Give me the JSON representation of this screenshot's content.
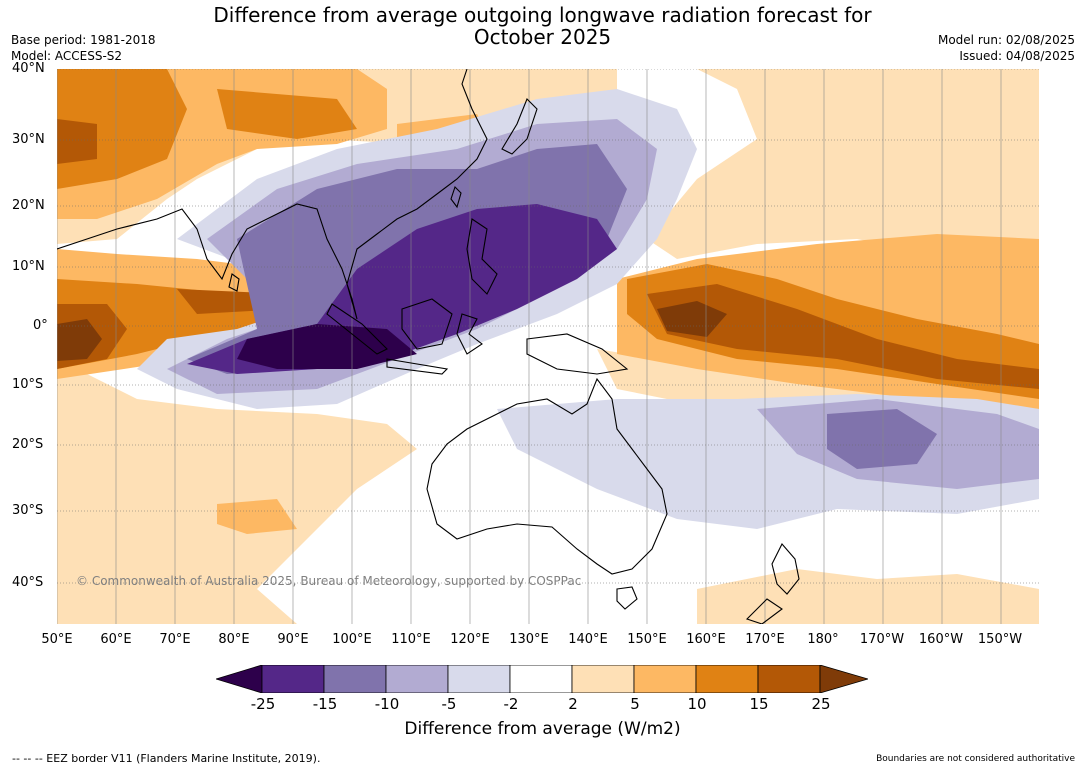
{
  "title": "Difference from average outgoing longwave radiation forecast for",
  "title_line2": "October 2025",
  "base_period": "Base period: 1981-2018",
  "model": "Model: ACCESS-S2",
  "model_run": "Model run: 02/08/2025",
  "issued": "Issued: 04/08/2025",
  "copyright": "© Commonwealth of Australia 2025, Bureau of Meteorology, supported by COSPPac",
  "lat_labels": [
    "40°N",
    "30°N",
    "20°N",
    "10°N",
    "0°",
    "10°S",
    "20°S",
    "30°S",
    "40°S"
  ],
  "lon_labels": [
    "50°E",
    "60°E",
    "70°E",
    "80°E",
    "90°E",
    "100°E",
    "110°E",
    "120°E",
    "130°E",
    "140°E",
    "150°E",
    "160°E",
    "170°E",
    "180°",
    "170°W",
    "160°W",
    "150°W"
  ],
  "colorbar": {
    "ticks": [
      "-25",
      "-15",
      "-10",
      "-5",
      "-2",
      "2",
      "5",
      "10",
      "15",
      "25"
    ],
    "colors": [
      "#2d004b",
      "#542788",
      "#8073ac",
      "#b2abd2",
      "#d8daeb",
      "#ffffff",
      "#fee0b6",
      "#fdb863",
      "#e08214",
      "#b35806",
      "#7f3b08"
    ],
    "label": "Difference from average (W/m2)"
  },
  "footer_left": "--  --  -- EEZ border V11 (Flanders Marine Institute, 2019).",
  "footer_right": "Boundaries are not considered authoritative"
}
